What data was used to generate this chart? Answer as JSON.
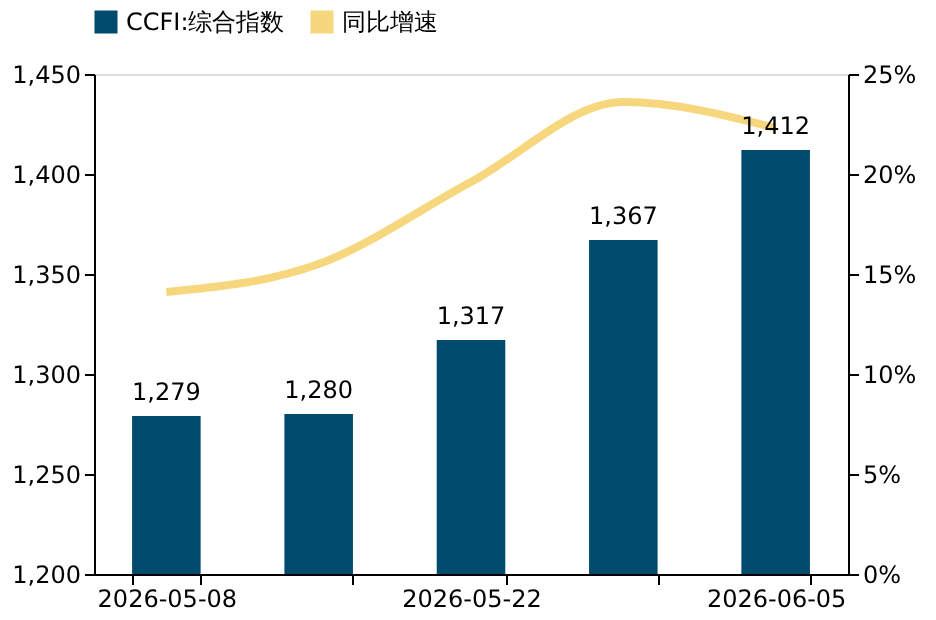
{
  "chart_data": {
    "type": "bar",
    "categories": [
      "2026-05-08",
      null,
      "2026-05-22",
      null,
      "2026-06-05"
    ],
    "series": [
      {
        "name": "CCFI:综合指数",
        "color": "#004a6e",
        "values": [
          1279,
          1280,
          1317,
          1367,
          1412
        ],
        "value_labels": [
          "1,279",
          "1,280",
          "1,317",
          "1,367",
          "1,412"
        ]
      },
      {
        "name": "同比增速",
        "type": "line",
        "axis": "y2",
        "color": "#f6d77e",
        "values": [
          14.1,
          15.5,
          19.6,
          23.6,
          22.3
        ]
      }
    ],
    "ylim": [
      1200,
      1450
    ],
    "yticks": [
      {
        "value": 1200,
        "label": "1,200"
      },
      {
        "value": 1250,
        "label": "1,250"
      },
      {
        "value": 1300,
        "label": "1,300"
      },
      {
        "value": 1350,
        "label": "1,350"
      },
      {
        "value": 1400,
        "label": "1,400"
      },
      {
        "value": 1450,
        "label": "1,450"
      }
    ],
    "y2lim": [
      0,
      25
    ],
    "y2ticks": [
      {
        "value": 0,
        "label": "0%"
      },
      {
        "value": 5,
        "label": "5%"
      },
      {
        "value": 10,
        "label": "10%"
      },
      {
        "value": 15,
        "label": "15%"
      },
      {
        "value": 20,
        "label": "20%"
      },
      {
        "value": 25,
        "label": "25%"
      }
    ],
    "legend": "top",
    "grid": false
  }
}
